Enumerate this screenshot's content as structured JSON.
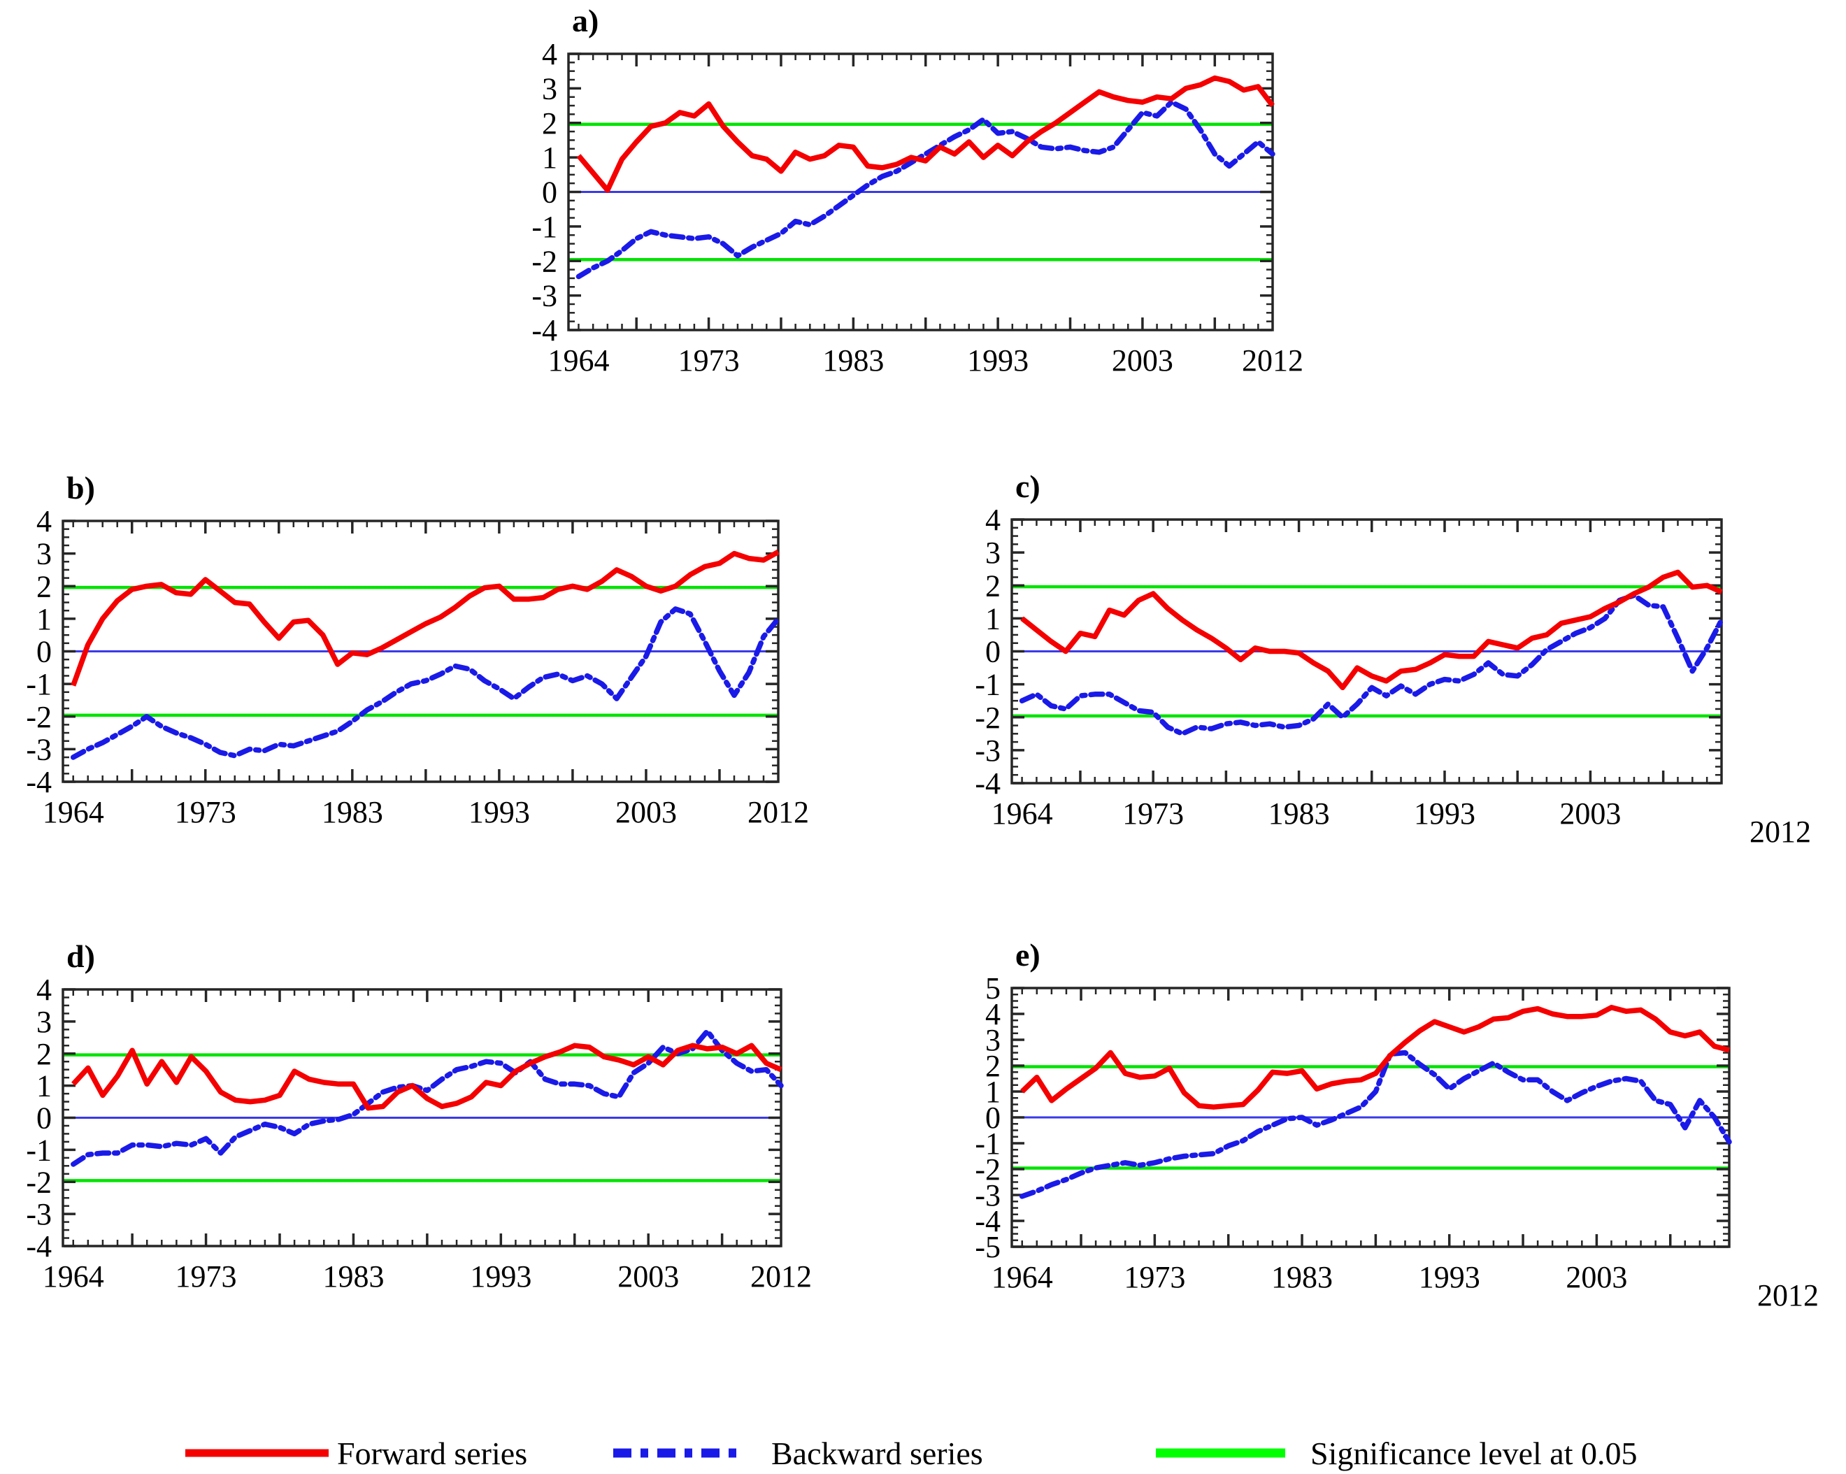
{
  "figure": {
    "background": "#FFFFFF",
    "panel_count": 5
  },
  "legend": {
    "forward_label": "Forward series",
    "backward_label": "Backward series",
    "significance_label": "Significance level at 0.05"
  },
  "chart_data": {
    "type": "line",
    "title": "",
    "xlabel": "",
    "ylabel": "",
    "grid": false,
    "years": [
      1964,
      1965,
      1966,
      1967,
      1968,
      1969,
      1970,
      1971,
      1972,
      1973,
      1974,
      1975,
      1976,
      1977,
      1978,
      1979,
      1980,
      1981,
      1982,
      1983,
      1984,
      1985,
      1986,
      1987,
      1988,
      1989,
      1990,
      1991,
      1992,
      1993,
      1994,
      1995,
      1996,
      1997,
      1998,
      1999,
      2000,
      2001,
      2002,
      2003,
      2004,
      2005,
      2006,
      2007,
      2008,
      2009,
      2010,
      2011,
      2012
    ],
    "xtick_years": [
      1964,
      1973,
      1983,
      1993,
      2003,
      2012
    ],
    "significance_level": 1.96,
    "zero_line": 0,
    "colors": {
      "forward": "#F50000",
      "backward": "#1A1AE8",
      "zero": "#3A3AE8",
      "significance": "#00E400",
      "significance_legend": "#00FF00",
      "frame": "#262626",
      "text": "#000000"
    },
    "panels": [
      {
        "id": "a",
        "label": "a)",
        "ylim": [
          -4,
          4
        ],
        "yticks": [
          4,
          3,
          2,
          1,
          0,
          -1,
          -2,
          -3,
          -4
        ],
        "forward": [
          1.05,
          0.55,
          0.05,
          0.95,
          1.45,
          1.9,
          2.0,
          2.3,
          2.2,
          2.55,
          1.9,
          1.45,
          1.05,
          0.95,
          0.6,
          1.15,
          0.95,
          1.05,
          1.35,
          1.3,
          0.75,
          0.7,
          0.8,
          1.0,
          0.9,
          1.3,
          1.1,
          1.45,
          1.0,
          1.35,
          1.05,
          1.45,
          1.75,
          2.0,
          2.3,
          2.6,
          2.9,
          2.75,
          2.65,
          2.6,
          2.75,
          2.7,
          3.0,
          3.1,
          3.3,
          3.2,
          2.95,
          3.05,
          2.5
        ],
        "backward": [
          -2.45,
          -2.2,
          -2.0,
          -1.7,
          -1.35,
          -1.15,
          -1.25,
          -1.3,
          -1.35,
          -1.3,
          -1.5,
          -1.85,
          -1.6,
          -1.4,
          -1.2,
          -0.85,
          -0.95,
          -0.7,
          -0.4,
          -0.1,
          0.2,
          0.45,
          0.6,
          0.85,
          1.1,
          1.35,
          1.6,
          1.8,
          2.1,
          1.7,
          1.75,
          1.55,
          1.3,
          1.25,
          1.3,
          1.2,
          1.15,
          1.3,
          1.8,
          2.3,
          2.2,
          2.6,
          2.4,
          1.8,
          1.1,
          0.75,
          1.1,
          1.45,
          1.1
        ]
      },
      {
        "id": "b",
        "label": "b)",
        "ylim": [
          -4,
          4
        ],
        "yticks": [
          4,
          3,
          2,
          1,
          0,
          -1,
          -2,
          -3,
          -4
        ],
        "forward": [
          -1.05,
          0.2,
          1.0,
          1.55,
          1.9,
          2.0,
          2.05,
          1.8,
          1.75,
          2.2,
          1.85,
          1.5,
          1.45,
          0.9,
          0.4,
          0.9,
          0.95,
          0.5,
          -0.4,
          -0.05,
          -0.1,
          0.1,
          0.35,
          0.6,
          0.85,
          1.05,
          1.35,
          1.7,
          1.95,
          2.0,
          1.6,
          1.6,
          1.65,
          1.9,
          2.0,
          1.9,
          2.15,
          2.5,
          2.3,
          2.0,
          1.85,
          2.0,
          2.35,
          2.6,
          2.7,
          3.0,
          2.85,
          2.8,
          3.05
        ],
        "backward": [
          -3.25,
          -3.0,
          -2.8,
          -2.55,
          -2.3,
          -2.0,
          -2.3,
          -2.5,
          -2.65,
          -2.85,
          -3.1,
          -3.2,
          -3.0,
          -3.05,
          -2.85,
          -2.9,
          -2.75,
          -2.6,
          -2.45,
          -2.15,
          -1.8,
          -1.55,
          -1.25,
          -1.0,
          -0.9,
          -0.7,
          -0.45,
          -0.55,
          -0.9,
          -1.15,
          -1.45,
          -1.1,
          -0.8,
          -0.7,
          -0.9,
          -0.75,
          -1.0,
          -1.45,
          -0.8,
          -0.15,
          0.9,
          1.3,
          1.15,
          0.3,
          -0.6,
          -1.35,
          -0.65,
          0.45,
          1.0
        ]
      },
      {
        "id": "c",
        "label": "c)",
        "ylim": [
          -4,
          4
        ],
        "yticks": [
          4,
          3,
          2,
          1,
          0,
          -1,
          -2,
          -3,
          -4
        ],
        "forward": [
          1.0,
          0.65,
          0.3,
          0.0,
          0.55,
          0.45,
          1.25,
          1.1,
          1.55,
          1.75,
          1.3,
          0.95,
          0.65,
          0.4,
          0.1,
          -0.25,
          0.1,
          0.0,
          0.0,
          -0.05,
          -0.35,
          -0.6,
          -1.1,
          -0.5,
          -0.75,
          -0.9,
          -0.6,
          -0.55,
          -0.35,
          -0.1,
          -0.15,
          -0.15,
          0.3,
          0.2,
          0.1,
          0.4,
          0.5,
          0.85,
          0.95,
          1.05,
          1.3,
          1.5,
          1.75,
          1.95,
          2.25,
          2.4,
          1.95,
          2.0,
          1.8
        ],
        "backward": [
          -1.5,
          -1.3,
          -1.65,
          -1.75,
          -1.35,
          -1.3,
          -1.3,
          -1.55,
          -1.8,
          -1.85,
          -2.3,
          -2.5,
          -2.3,
          -2.35,
          -2.2,
          -2.15,
          -2.25,
          -2.2,
          -2.3,
          -2.25,
          -2.05,
          -1.6,
          -2.0,
          -1.6,
          -1.1,
          -1.35,
          -1.05,
          -1.3,
          -1.0,
          -0.85,
          -0.9,
          -0.7,
          -0.35,
          -0.7,
          -0.75,
          -0.4,
          0.05,
          0.3,
          0.55,
          0.72,
          1.0,
          1.55,
          1.7,
          1.4,
          1.35,
          0.4,
          -0.6,
          0.1,
          0.95
        ]
      },
      {
        "id": "d",
        "label": "d)",
        "ylim": [
          -4,
          4
        ],
        "yticks": [
          4,
          3,
          2,
          1,
          0,
          -1,
          -2,
          -3,
          -4
        ],
        "forward": [
          1.05,
          1.55,
          0.7,
          1.3,
          2.1,
          1.05,
          1.75,
          1.1,
          1.9,
          1.45,
          0.8,
          0.55,
          0.5,
          0.55,
          0.7,
          1.45,
          1.2,
          1.1,
          1.05,
          1.05,
          0.3,
          0.35,
          0.8,
          1.0,
          0.6,
          0.35,
          0.45,
          0.65,
          1.1,
          1.0,
          1.45,
          1.7,
          1.9,
          2.05,
          2.25,
          2.2,
          1.9,
          1.8,
          1.65,
          1.9,
          1.65,
          2.1,
          2.25,
          2.15,
          2.2,
          2.0,
          2.25,
          1.7,
          1.5
        ],
        "backward": [
          -1.45,
          -1.15,
          -1.1,
          -1.1,
          -0.85,
          -0.85,
          -0.9,
          -0.8,
          -0.85,
          -0.65,
          -1.1,
          -0.6,
          -0.4,
          -0.2,
          -0.3,
          -0.5,
          -0.2,
          -0.1,
          -0.05,
          0.1,
          0.45,
          0.8,
          0.95,
          1.0,
          0.85,
          1.2,
          1.5,
          1.6,
          1.75,
          1.7,
          1.4,
          1.75,
          1.2,
          1.05,
          1.05,
          1.0,
          0.75,
          0.65,
          1.4,
          1.7,
          2.2,
          2.0,
          2.15,
          2.7,
          2.1,
          1.7,
          1.45,
          1.5,
          1.0
        ]
      },
      {
        "id": "e",
        "label": "e)",
        "ylim": [
          -5,
          5
        ],
        "yticks": [
          5,
          4,
          3,
          2,
          1,
          0,
          -1,
          -2,
          -3,
          -4,
          -5
        ],
        "forward": [
          1.0,
          1.55,
          0.65,
          1.1,
          1.5,
          1.9,
          2.5,
          1.7,
          1.55,
          1.6,
          1.9,
          0.95,
          0.45,
          0.4,
          0.45,
          0.5,
          1.05,
          1.75,
          1.7,
          1.8,
          1.1,
          1.3,
          1.4,
          1.45,
          1.7,
          2.4,
          2.9,
          3.35,
          3.7,
          3.5,
          3.3,
          3.5,
          3.8,
          3.85,
          4.1,
          4.2,
          4.0,
          3.9,
          3.9,
          3.95,
          4.25,
          4.1,
          4.15,
          3.8,
          3.3,
          3.15,
          3.3,
          2.75,
          2.6
        ],
        "backward": [
          -3.05,
          -2.85,
          -2.6,
          -2.4,
          -2.15,
          -1.95,
          -1.85,
          -1.75,
          -1.85,
          -1.75,
          -1.6,
          -1.5,
          -1.45,
          -1.4,
          -1.1,
          -0.9,
          -0.55,
          -0.3,
          -0.05,
          0.0,
          -0.3,
          -0.1,
          0.15,
          0.4,
          1.0,
          2.45,
          2.5,
          2.05,
          1.65,
          1.1,
          1.5,
          1.8,
          2.1,
          1.75,
          1.45,
          1.45,
          1.0,
          0.65,
          0.95,
          1.2,
          1.4,
          1.5,
          1.4,
          0.65,
          0.5,
          -0.4,
          0.65,
          0.0,
          -0.95
        ]
      }
    ]
  }
}
